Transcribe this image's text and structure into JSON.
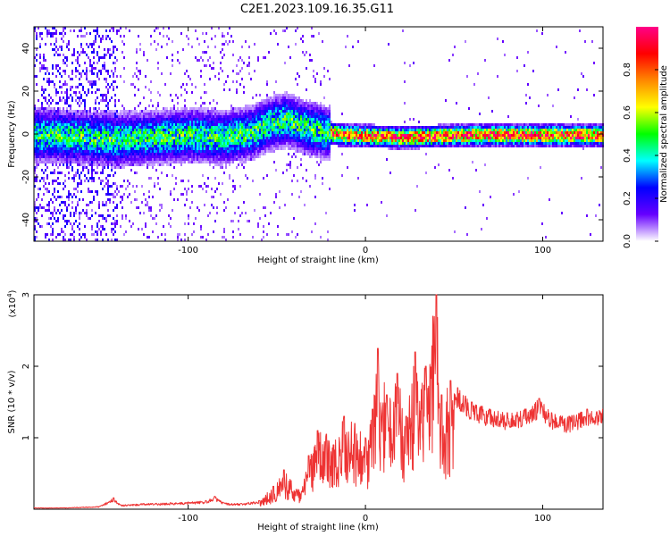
{
  "title": "C2E1.2023.109.16.35.G11",
  "chart_data": [
    {
      "type": "heatmap",
      "xlabel": "Height of straight line (km)",
      "ylabel": "Frequency (Hz)",
      "xlim": [
        -187,
        134
      ],
      "ylim": [
        -50,
        50
      ],
      "xticks": [
        {
          "value": -100,
          "label": "-100"
        },
        {
          "value": 0,
          "label": "0"
        },
        {
          "value": 100,
          "label": "100"
        }
      ],
      "yticks": [
        {
          "value": -40,
          "label": "-40"
        },
        {
          "value": -20,
          "label": "-20"
        },
        {
          "value": 0,
          "label": "0"
        },
        {
          "value": 20,
          "label": "20"
        },
        {
          "value": 40,
          "label": "40"
        }
      ],
      "ridge": [
        {
          "x": -185,
          "y": 0
        },
        {
          "x": -160,
          "y": -1
        },
        {
          "x": -140,
          "y": -2
        },
        {
          "x": -120,
          "y": -1
        },
        {
          "x": -100,
          "y": 0
        },
        {
          "x": -80,
          "y": -1
        },
        {
          "x": -65,
          "y": 1
        },
        {
          "x": -55,
          "y": 5
        },
        {
          "x": -45,
          "y": 7
        },
        {
          "x": -35,
          "y": 4
        },
        {
          "x": -22,
          "y": 1
        },
        {
          "x": -10,
          "y": 0
        },
        {
          "x": 20,
          "y": -1
        },
        {
          "x": 60,
          "y": 0
        },
        {
          "x": 95,
          "y": 0
        },
        {
          "x": 134,
          "y": 0
        }
      ],
      "colorbar": {
        "label": "Normalized spectral amplitude",
        "range": [
          0,
          1
        ],
        "ticks": [
          {
            "value": 0.0,
            "label": "0.0"
          },
          {
            "value": 0.2,
            "label": "0.2"
          },
          {
            "value": 0.4,
            "label": "0.4"
          },
          {
            "value": 0.6,
            "label": "0.6"
          },
          {
            "value": 0.8,
            "label": "0.8"
          }
        ],
        "colors": [
          "#ffffff",
          "#6600ff",
          "#0000ff",
          "#00ffff",
          "#00ff00",
          "#ffff00",
          "#ff8800",
          "#ff0000",
          "#ff0088"
        ]
      }
    },
    {
      "type": "line",
      "xlabel": "Height of straight line (km)",
      "ylabel": "SNR (10 * v/v)",
      "ylabel_multiplier": "(x10",
      "ylabel_exponent": "4",
      "ylabel_close": ")",
      "xlim": [
        -187,
        134
      ],
      "ylim": [
        0,
        3
      ],
      "xticks": [
        {
          "value": -100,
          "label": "-100"
        },
        {
          "value": 0,
          "label": "0"
        },
        {
          "value": 100,
          "label": "100"
        }
      ],
      "yticks": [
        {
          "value": 1,
          "label": "1"
        },
        {
          "value": 2,
          "label": "2"
        },
        {
          "value": 3,
          "label": "3"
        }
      ],
      "color": "#ee3333",
      "series": [
        {
          "name": "SNR",
          "points": [
            [
              -187,
              0.02
            ],
            [
              -170,
              0.02
            ],
            [
              -150,
              0.04
            ],
            [
              -142,
              0.16
            ],
            [
              -138,
              0.06
            ],
            [
              -125,
              0.08
            ],
            [
              -110,
              0.09
            ],
            [
              -100,
              0.1
            ],
            [
              -90,
              0.12
            ],
            [
              -85,
              0.18
            ],
            [
              -80,
              0.09
            ],
            [
              -70,
              0.08
            ],
            [
              -60,
              0.12
            ],
            [
              -52,
              0.32
            ],
            [
              -46,
              0.55
            ],
            [
              -42,
              0.4
            ],
            [
              -36,
              0.25
            ],
            [
              -32,
              0.75
            ],
            [
              -27,
              1.1
            ],
            [
              -22,
              1.05
            ],
            [
              -18,
              0.9
            ],
            [
              -12,
              1.3
            ],
            [
              -6,
              1.2
            ],
            [
              0,
              1.0
            ],
            [
              4,
              1.4
            ],
            [
              7,
              2.25
            ],
            [
              12,
              1.6
            ],
            [
              18,
              1.9
            ],
            [
              23,
              1.3
            ],
            [
              28,
              2.2
            ],
            [
              34,
              2.0
            ],
            [
              38,
              2.7
            ],
            [
              40,
              3.0
            ],
            [
              43,
              1.6
            ],
            [
              48,
              1.8
            ],
            [
              52,
              1.7
            ],
            [
              60,
              1.5
            ],
            [
              70,
              1.4
            ],
            [
              80,
              1.35
            ],
            [
              90,
              1.4
            ],
            [
              98,
              1.55
            ],
            [
              105,
              1.35
            ],
            [
              115,
              1.3
            ],
            [
              125,
              1.4
            ],
            [
              134,
              1.4
            ]
          ]
        }
      ]
    }
  ]
}
